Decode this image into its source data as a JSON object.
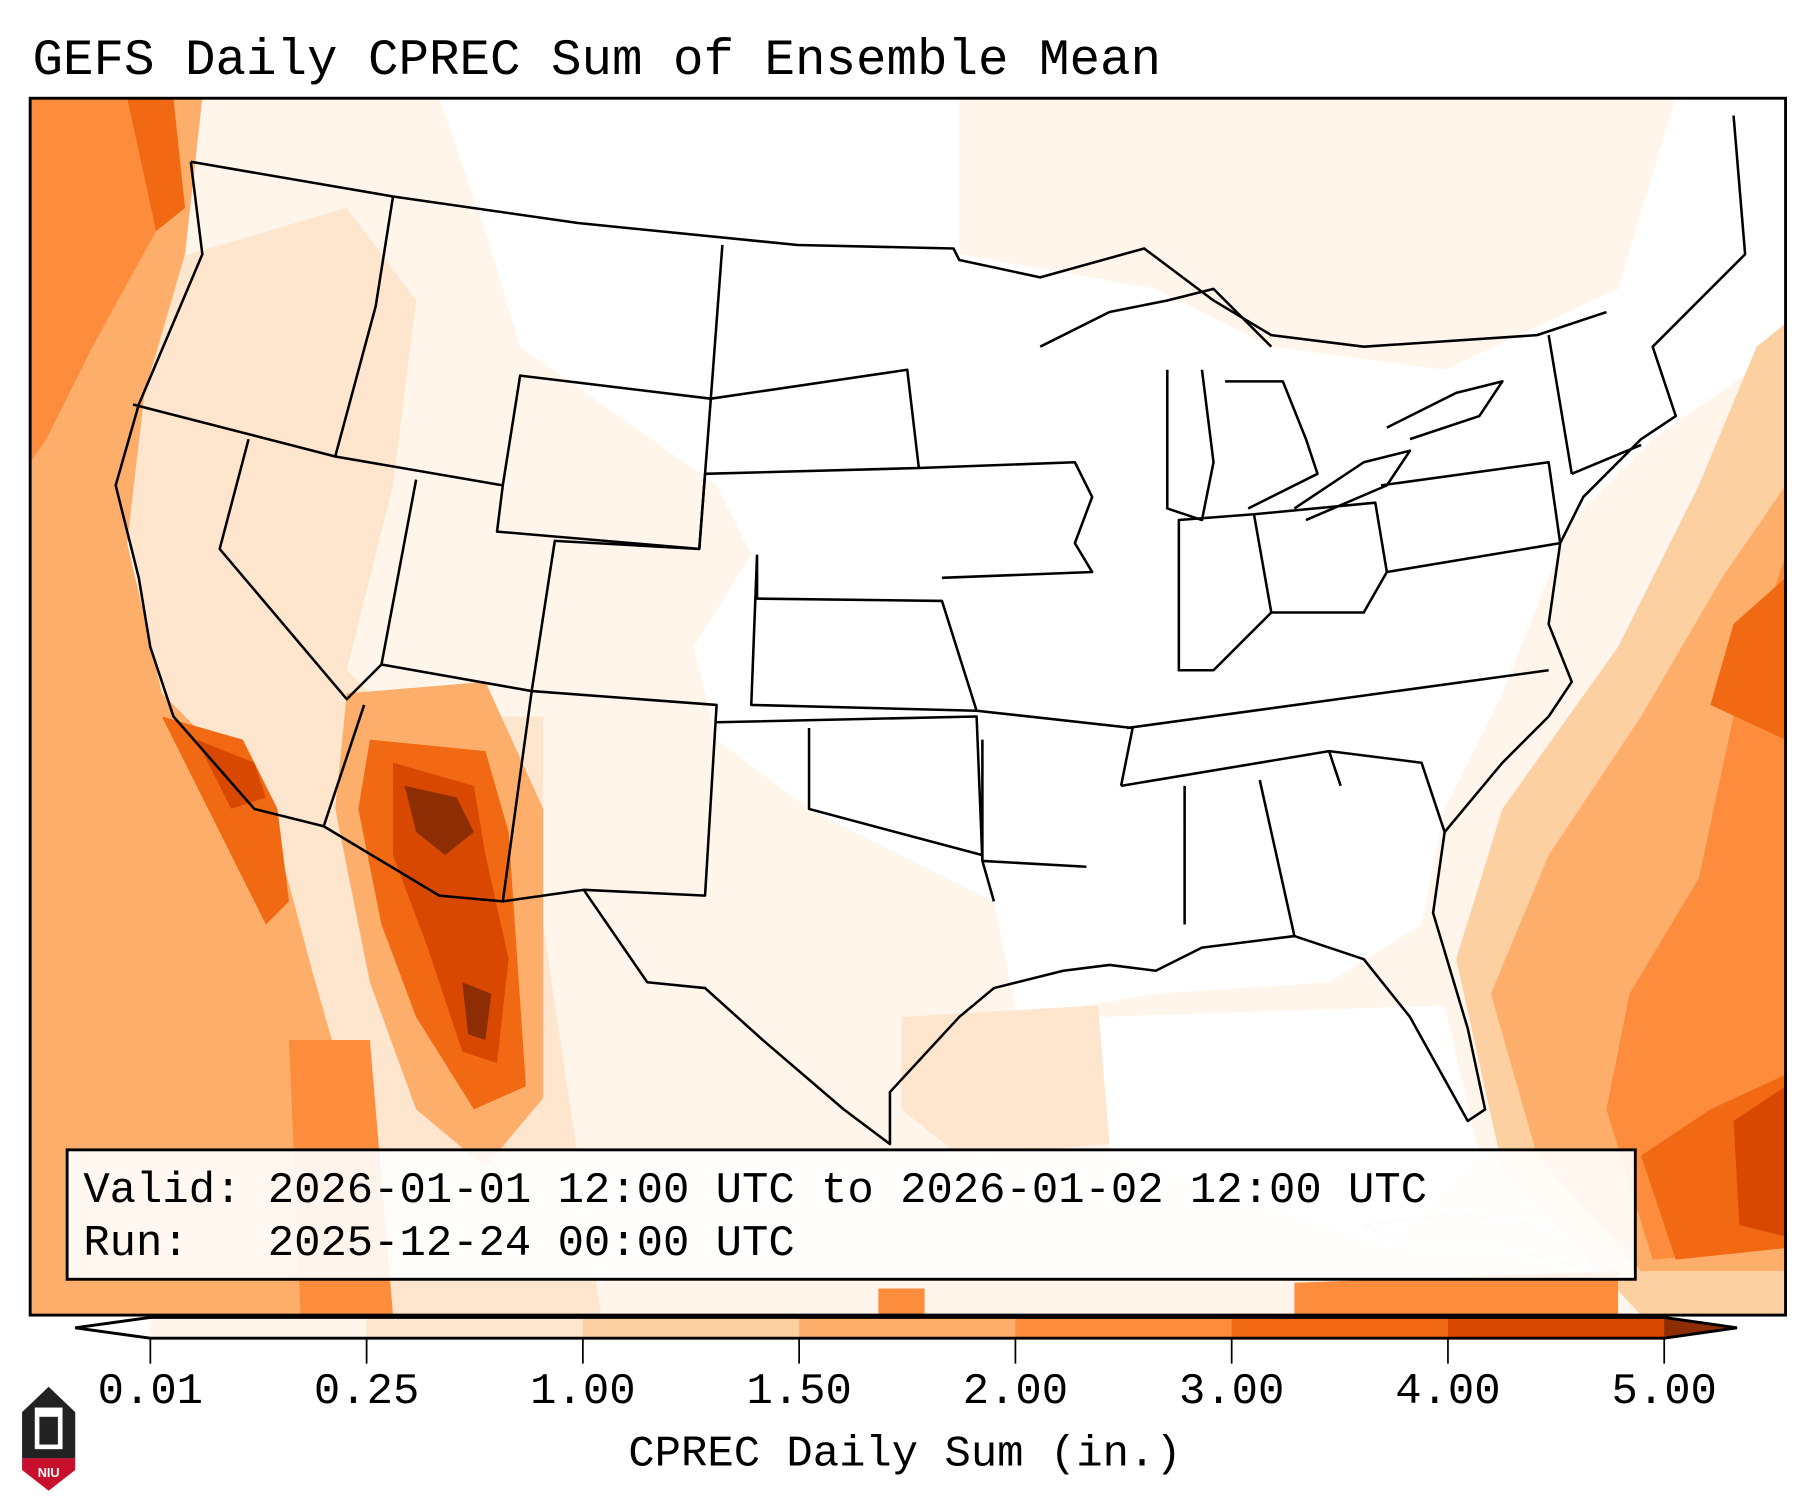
{
  "title": "GEFS Daily CPREC Sum of Ensemble Mean",
  "info_box": {
    "valid_line": "Valid: 2026-01-01 12:00 UTC to 2026-01-02 12:00 UTC",
    "run_line": "Run:   2025-12-24 00:00 UTC"
  },
  "colorbar": {
    "label": "CPREC Daily Sum (in.)",
    "ticks": [
      "0.01",
      "0.25",
      "1.00",
      "1.50",
      "2.00",
      "3.00",
      "4.00",
      "5.00"
    ],
    "colors": [
      "#fff5eb",
      "#fee6ce",
      "#fdd0a2",
      "#fdae6b",
      "#fd8d3c",
      "#f16913",
      "#d94801"
    ],
    "under_color": "#ffffff",
    "over_color": "#8c2d04"
  },
  "logo": {
    "text": "NIU"
  }
}
